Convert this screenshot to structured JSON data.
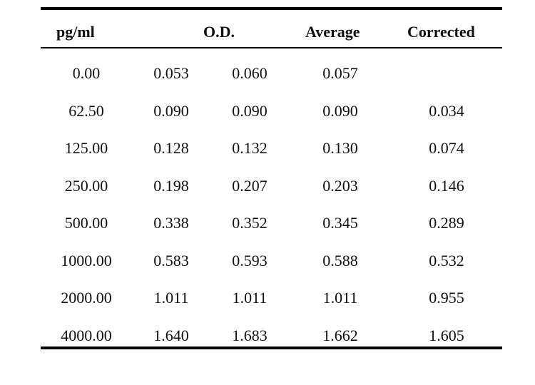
{
  "headers": {
    "conc": "pg/ml",
    "od": "O.D.",
    "average": "Average",
    "corrected": "Corrected"
  },
  "rows": [
    {
      "conc": "0.00",
      "od1": "0.053",
      "od2": "0.060",
      "average": "0.057",
      "corrected": ""
    },
    {
      "conc": "62.50",
      "od1": "0.090",
      "od2": "0.090",
      "average": "0.090",
      "corrected": "0.034"
    },
    {
      "conc": "125.00",
      "od1": "0.128",
      "od2": "0.132",
      "average": "0.130",
      "corrected": "0.074"
    },
    {
      "conc": "250.00",
      "od1": "0.198",
      "od2": "0.207",
      "average": "0.203",
      "corrected": "0.146"
    },
    {
      "conc": "500.00",
      "od1": "0.338",
      "od2": "0.352",
      "average": "0.345",
      "corrected": "0.289"
    },
    {
      "conc": "1000.00",
      "od1": "0.583",
      "od2": "0.593",
      "average": "0.588",
      "corrected": "0.532"
    },
    {
      "conc": "2000.00",
      "od1": "1.011",
      "od2": "1.011",
      "average": "1.011",
      "corrected": "0.955"
    },
    {
      "conc": "4000.00",
      "od1": "1.640",
      "od2": "1.683",
      "average": "1.662",
      "corrected": "1.605"
    }
  ]
}
